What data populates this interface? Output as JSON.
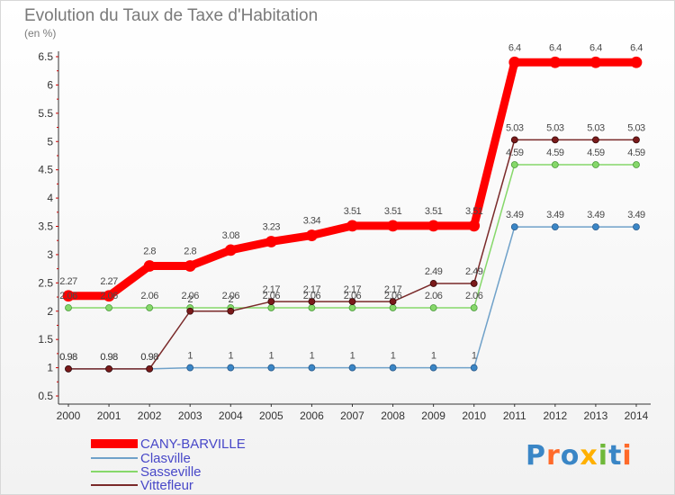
{
  "chart_data": {
    "type": "line",
    "title": "Evolution du Taux de Taxe d'Habitation",
    "ylabel": "(en %)",
    "xlabel": "",
    "x": [
      "2000",
      "2001",
      "2002",
      "2003",
      "2004",
      "2005",
      "2006",
      "2007",
      "2008",
      "2009",
      "2010",
      "2011",
      "2012",
      "2013",
      "2014"
    ],
    "ylim": [
      0.5,
      6.5
    ],
    "yticks": [
      "0.5",
      "1",
      "1.5",
      "2",
      "2.5",
      "3",
      "3.5",
      "4",
      "4.5",
      "5",
      "5.5",
      "6",
      "6.5"
    ],
    "grid": false,
    "legend_position": "bottom-left",
    "series": [
      {
        "name": "CANY-BARVILLE",
        "color": "#ff0000",
        "values": [
          2.27,
          2.27,
          2.8,
          2.8,
          3.08,
          3.23,
          3.34,
          3.51,
          3.51,
          3.51,
          3.51,
          6.4,
          6.4,
          6.4,
          6.4
        ],
        "labels": [
          "2.27",
          "2.27",
          "2.8",
          "2.8",
          "3.08",
          "3.23",
          "3.34",
          "3.51",
          "3.51",
          "3.51",
          "3.51",
          "6.4",
          "6.4",
          "6.4",
          "6.4"
        ]
      },
      {
        "name": "Clasville",
        "color": "#6fa1c9",
        "values": [
          0.98,
          0.98,
          0.98,
          1,
          1,
          1,
          1,
          1,
          1,
          1,
          1,
          3.49,
          3.49,
          3.49,
          3.49
        ],
        "labels": [
          "0.98",
          "0.98",
          "0.98",
          "1",
          "1",
          "1",
          "1",
          "1",
          "1",
          "1",
          "1",
          "3.49",
          "3.49",
          "3.49",
          "3.49"
        ]
      },
      {
        "name": "Sasseville",
        "color": "#86d86a",
        "values": [
          2.06,
          2.06,
          2.06,
          2.06,
          2.06,
          2.06,
          2.06,
          2.06,
          2.06,
          2.06,
          2.06,
          4.59,
          4.59,
          4.59,
          4.59
        ],
        "labels": [
          "2.06",
          "2.06",
          "2.06",
          "2.06",
          "2.06",
          "2.06",
          "2.06",
          "2.06",
          "2.06",
          "2.06",
          "2.06",
          "4.59",
          "4.59",
          "4.59",
          "4.59"
        ]
      },
      {
        "name": "Vittefleur",
        "color": "#7a2a2a",
        "values": [
          0.98,
          0.98,
          0.98,
          2,
          2,
          2.17,
          2.17,
          2.17,
          2.17,
          2.49,
          2.49,
          5.03,
          5.03,
          5.03,
          5.03
        ],
        "labels": [
          "0.98",
          "0.98",
          "0.98",
          "2",
          "2",
          "2.17",
          "2.17",
          "2.17",
          "2.17",
          "2.49",
          "2.49",
          "5.03",
          "5.03",
          "5.03",
          "5.03"
        ]
      }
    ]
  },
  "brand": {
    "text": "Proxiti"
  }
}
